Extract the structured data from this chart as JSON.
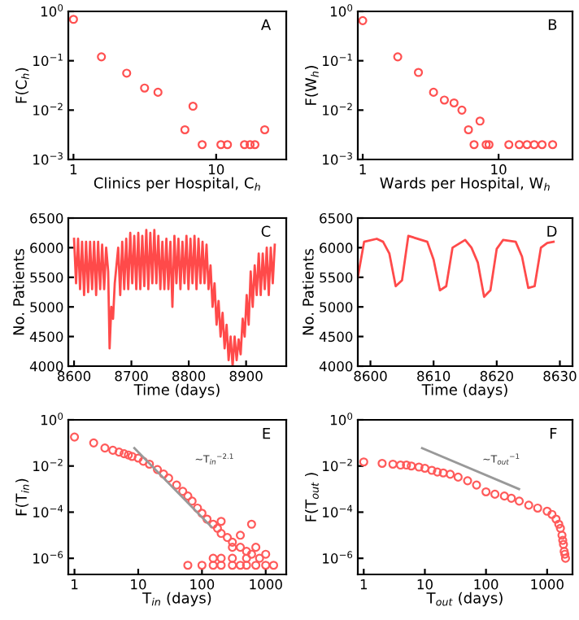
{
  "chart_data": [
    {
      "type": "scatter",
      "xlabel": "Clinics per Hospital, C$_{h}$",
      "ylabel": "F(C$_{h}$)",
      "log": "xy",
      "marker": "circle",
      "annotations": [
        "A"
      ],
      "xlim": [
        0.92,
        31
      ],
      "ylim": [
        0.001,
        1
      ],
      "xticks": [
        1,
        10
      ],
      "yticks": [
        {
          "value": 1,
          "label": "10$^{0}$"
        },
        {
          "value": 0.1,
          "label": "10$^{−1}$"
        },
        {
          "value": 0.01,
          "label": "10$^{−2}$"
        },
        {
          "value": 0.001,
          "label": "10$^{−3}$"
        }
      ],
      "series": [
        {
          "color": "#ff5050",
          "x": [
            1,
            1.57,
            2.36,
            3.15,
            3.91,
            6.04,
            6.88,
            7.98,
            10.8,
            12.0,
            15.8,
            17.3,
            18.7,
            21.9
          ],
          "values": [
            0.69,
            0.12,
            0.056,
            0.028,
            0.023,
            0.004,
            0.012,
            0.002,
            0.002,
            0.002,
            0.002,
            0.002,
            0.002,
            0.004
          ]
        }
      ]
    },
    {
      "type": "scatter",
      "xlabel": "Wards per Hospital, W$_{h}$",
      "ylabel": "F(W$_{h}$)",
      "log": "xy",
      "marker": "circle",
      "annotations": [
        "B"
      ],
      "xlim": [
        0.92,
        35
      ],
      "ylim": [
        0.001,
        1
      ],
      "xticks": [
        1,
        10
      ],
      "yticks": [
        {
          "value": 1,
          "label": "10$^{0}$"
        },
        {
          "value": 0.1,
          "label": "10$^{−1}$"
        },
        {
          "value": 0.01,
          "label": "10$^{−2}$"
        },
        {
          "value": 0.001,
          "label": "10$^{−3}$"
        }
      ],
      "series": [
        {
          "color": "#ff5050",
          "x": [
            1,
            1.81,
            2.57,
            3.32,
            3.99,
            4.7,
            5.37,
            6.0,
            6.6,
            7.3,
            8.1,
            8.5,
            11.9,
            14.2,
            16.2,
            18.3,
            20.9,
            25
          ],
          "values": [
            0.65,
            0.12,
            0.058,
            0.023,
            0.016,
            0.014,
            0.01,
            0.004,
            0.002,
            0.006,
            0.002,
            0.002,
            0.002,
            0.002,
            0.002,
            0.002,
            0.002,
            0.002
          ]
        }
      ]
    },
    {
      "type": "line",
      "xlabel": "Time (days)",
      "ylabel": "No. Patients",
      "annotations": [
        "C"
      ],
      "xlim": [
        8590,
        8970
      ],
      "ylim": [
        4000,
        6500
      ],
      "xticks": [
        8600,
        8700,
        8800,
        8900
      ],
      "yticks": [
        4000,
        4500,
        5000,
        5500,
        6000,
        6500
      ],
      "series": [
        {
          "color": "#ff4a4a",
          "x": [
            8600,
            8603.5,
            8607,
            8610.5,
            8614,
            8617.5,
            8621,
            8624.5,
            8628,
            8631.5,
            8635,
            8638.5,
            8642,
            8645.5,
            8649,
            8652.5,
            8656,
            8659.5,
            8662,
            8665,
            8668,
            8671,
            8677,
            8680.5,
            8684,
            8687.5,
            8691,
            8694.5,
            8698,
            8701.5,
            8705,
            8708.5,
            8712,
            8715.5,
            8719,
            8722.5,
            8726,
            8729.5,
            8733,
            8736.5,
            8740,
            8743.5,
            8747,
            8750.5,
            8754,
            8757.5,
            8761,
            8764.5,
            8768,
            8771.5,
            8775,
            8778.5,
            8782,
            8785.5,
            8789,
            8792.5,
            8796,
            8799.5,
            8803,
            8806.5,
            8810,
            8813.5,
            8817,
            8820.5,
            8824,
            8827.5,
            8831,
            8834.5,
            8838,
            8841.5,
            8845,
            8848.5,
            8852,
            8855.5,
            8859,
            8862.5,
            8866,
            8869.5,
            8873,
            8876.5,
            8880,
            8883.5,
            8887,
            8890.5,
            8894,
            8897.5,
            8901,
            8904.5,
            8908,
            8911.5,
            8915,
            8918.5,
            8922,
            8925.5,
            8929,
            8932.5,
            8936,
            8939.5,
            8943,
            8946.5,
            8950
          ],
          "values": [
            6150,
            5400,
            6150,
            5300,
            6100,
            5200,
            6100,
            5250,
            6100,
            5300,
            6100,
            5200,
            6100,
            5300,
            6050,
            5300,
            6000,
            5600,
            4300,
            5000,
            4800,
            5400,
            6000,
            5200,
            6100,
            5300,
            6150,
            5300,
            6250,
            5400,
            6200,
            5300,
            6250,
            5300,
            6200,
            5350,
            6300,
            5300,
            6250,
            5400,
            6300,
            5400,
            6200,
            5300,
            6100,
            5300,
            6150,
            5300,
            6100,
            5000,
            6200,
            5400,
            6150,
            5300,
            6100,
            5400,
            6200,
            5300,
            6150,
            5400,
            6200,
            5300,
            6150,
            5400,
            6100,
            5400,
            6050,
            5300,
            5700,
            5000,
            5400,
            4700,
            5100,
            4500,
            4900,
            4300,
            4700,
            4100,
            4500,
            4000,
            4500,
            4100,
            4450,
            4200,
            4800,
            4500,
            5200,
            4700,
            5600,
            5000,
            5700,
            5200,
            5900,
            5200,
            5900,
            5300,
            6000,
            5200,
            6000,
            5400,
            6050
          ]
        }
      ]
    },
    {
      "type": "line",
      "xlabel": "Time (days)",
      "ylabel": "No. Patients",
      "annotations": [
        "D"
      ],
      "xlim": [
        8598,
        8632
      ],
      "ylim": [
        4000,
        6500
      ],
      "xticks": [
        8600,
        8610,
        8620,
        8630
      ],
      "yticks": [
        4000,
        4500,
        5000,
        5500,
        6000,
        6500
      ],
      "series": [
        {
          "color": "#ff4a4a",
          "x": [
            8598,
            8599,
            8601,
            8602,
            8603,
            8604,
            8605,
            8606,
            8609,
            8610,
            8611,
            8612,
            8613,
            8615,
            8616,
            8617,
            8618,
            8619,
            8620,
            8621,
            8623,
            8624,
            8625,
            8626,
            8627,
            8628,
            8629
          ],
          "values": [
            5500,
            6100,
            6150,
            6100,
            5900,
            5350,
            5450,
            6200,
            6100,
            5800,
            5280,
            5350,
            6000,
            6130,
            6000,
            5750,
            5170,
            5280,
            5980,
            6130,
            6100,
            5850,
            5320,
            5350,
            6000,
            6080,
            6100
          ]
        }
      ]
    },
    {
      "type": "scatter",
      "xlabel": "T$_{in}$ (days)",
      "ylabel": "F(T$_{in}$)",
      "log": "xy",
      "marker": "circle",
      "annotations": [
        "E",
        "~T$_{in}$$^{−2.1}$"
      ],
      "xlim": [
        0.8,
        2100
      ],
      "ylim": [
        2e-07,
        1
      ],
      "xticks": [
        1,
        10,
        100,
        1000
      ],
      "yticks": [
        {
          "value": 1,
          "label": "10$^{0}$"
        },
        {
          "value": 0.01,
          "label": "10$^{−2}$"
        },
        {
          "value": 0.0001,
          "label": "10$^{−4}$"
        },
        {
          "value": 1e-06,
          "label": "10$^{−6}$"
        }
      ],
      "series": [
        {
          "color": "#ff5a5a",
          "x": [
            1,
            2,
            3,
            4,
            5,
            6,
            7,
            8,
            10,
            12,
            15,
            20,
            25,
            30,
            40,
            50,
            60,
            70,
            85,
            100,
            120,
            150,
            175,
            200,
            250,
            300,
            400,
            500,
            600,
            200,
            400,
            600,
            300,
            700,
            60,
            100,
            150,
            200,
            300,
            400,
            500,
            700,
            1000,
            1330,
            150,
            200,
            300,
            500,
            800,
            1000
          ],
          "values": [
            0.18,
            0.1,
            0.06,
            0.048,
            0.04,
            0.034,
            0.03,
            0.026,
            0.022,
            0.016,
            0.012,
            0.007,
            0.0045,
            0.003,
            0.0015,
            0.0008,
            0.0005,
            0.0003,
            0.00015,
            9e-05,
            5e-05,
            3e-05,
            2e-05,
            1.2e-05,
            8e-06,
            5e-06,
            3e-06,
            2e-06,
            1.5e-06,
            4e-05,
            1e-05,
            3e-05,
            3e-06,
            3e-06,
            5e-07,
            5e-07,
            5e-07,
            5e-07,
            5e-07,
            5e-07,
            5e-07,
            5e-07,
            5e-07,
            5e-07,
            1e-06,
            1e-06,
            1e-06,
            1e-06,
            1e-06,
            1.5e-06
          ]
        },
        {
          "type": "line",
          "marker": "none",
          "color": "#999999",
          "x": [
            8.7,
            141
          ],
          "values": [
            0.06,
            2.3e-05
          ]
        }
      ]
    },
    {
      "type": "scatter",
      "xlabel": "T$_{out}$ (days)",
      "ylabel": "F(T$_{out}$ )",
      "log": "xy",
      "marker": "circle",
      "annotations": [
        "F",
        "~T$_{out}$$^{−1}$"
      ],
      "xlim": [
        0.8,
        2600
      ],
      "ylim": [
        2e-07,
        1
      ],
      "xticks": [
        1,
        10,
        100,
        1000
      ],
      "yticks": [
        {
          "value": 1,
          "label": "10$^{0}$"
        },
        {
          "value": 0.01,
          "label": "10$^{−2}$"
        },
        {
          "value": 0.0001,
          "label": "10$^{−4}$"
        },
        {
          "value": 1e-06,
          "label": "10$^{−6}$"
        }
      ],
      "series": [
        {
          "color": "#ff5a5a",
          "x": [
            1,
            2,
            3,
            4,
            5,
            6,
            8,
            10,
            13,
            16,
            20,
            26,
            35,
            50,
            70,
            100,
            140,
            200,
            260,
            350,
            500,
            700,
            1000,
            1200,
            1400,
            1550,
            1650,
            1750,
            1800,
            1850,
            1900,
            1950,
            2000
          ],
          "values": [
            0.015,
            0.013,
            0.012,
            0.011,
            0.011,
            0.01,
            0.009,
            0.008,
            0.0065,
            0.0055,
            0.005,
            0.0044,
            0.0033,
            0.0023,
            0.0015,
            0.00076,
            0.0006,
            0.0005,
            0.0004,
            0.0003,
            0.0002,
            0.00015,
            0.00011,
            8e-05,
            5e-05,
            3e-05,
            2e-05,
            1e-05,
            6e-06,
            4e-06,
            2e-06,
            1.5e-06,
            1e-06
          ]
        },
        {
          "type": "line",
          "marker": "none",
          "color": "#999999",
          "x": [
            9,
            347
          ],
          "values": [
            0.059,
            0.001
          ]
        }
      ]
    }
  ]
}
